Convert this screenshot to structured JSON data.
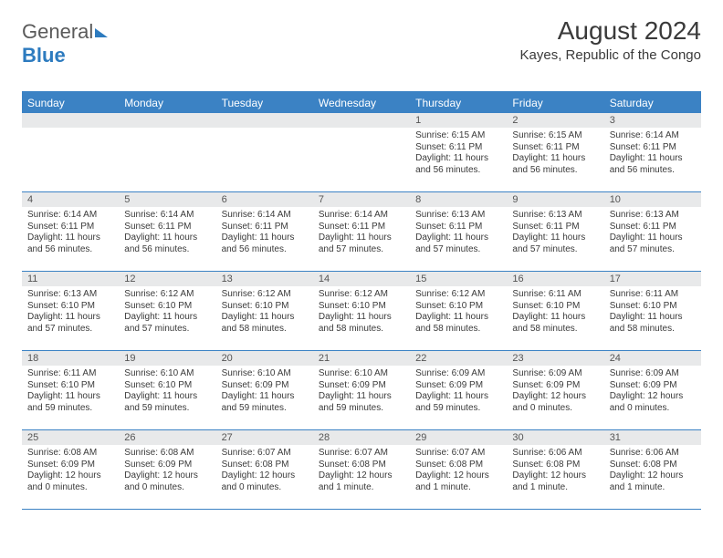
{
  "logo": {
    "part1": "General",
    "part2": "Blue"
  },
  "title": "August 2024",
  "location": "Kayes, Republic of the Congo",
  "colors": {
    "header_bg": "#3b82c4",
    "header_text": "#ffffff",
    "daynum_bg": "#e8e9ea",
    "body_text": "#3a3a3a",
    "rule": "#3b82c4"
  },
  "day_headers": [
    "Sunday",
    "Monday",
    "Tuesday",
    "Wednesday",
    "Thursday",
    "Friday",
    "Saturday"
  ],
  "weeks": [
    [
      {
        "n": "",
        "sr": "",
        "ss": "",
        "dl": ""
      },
      {
        "n": "",
        "sr": "",
        "ss": "",
        "dl": ""
      },
      {
        "n": "",
        "sr": "",
        "ss": "",
        "dl": ""
      },
      {
        "n": "",
        "sr": "",
        "ss": "",
        "dl": ""
      },
      {
        "n": "1",
        "sr": "6:15 AM",
        "ss": "6:11 PM",
        "dl": "11 hours and 56 minutes."
      },
      {
        "n": "2",
        "sr": "6:15 AM",
        "ss": "6:11 PM",
        "dl": "11 hours and 56 minutes."
      },
      {
        "n": "3",
        "sr": "6:14 AM",
        "ss": "6:11 PM",
        "dl": "11 hours and 56 minutes."
      }
    ],
    [
      {
        "n": "4",
        "sr": "6:14 AM",
        "ss": "6:11 PM",
        "dl": "11 hours and 56 minutes."
      },
      {
        "n": "5",
        "sr": "6:14 AM",
        "ss": "6:11 PM",
        "dl": "11 hours and 56 minutes."
      },
      {
        "n": "6",
        "sr": "6:14 AM",
        "ss": "6:11 PM",
        "dl": "11 hours and 56 minutes."
      },
      {
        "n": "7",
        "sr": "6:14 AM",
        "ss": "6:11 PM",
        "dl": "11 hours and 57 minutes."
      },
      {
        "n": "8",
        "sr": "6:13 AM",
        "ss": "6:11 PM",
        "dl": "11 hours and 57 minutes."
      },
      {
        "n": "9",
        "sr": "6:13 AM",
        "ss": "6:11 PM",
        "dl": "11 hours and 57 minutes."
      },
      {
        "n": "10",
        "sr": "6:13 AM",
        "ss": "6:11 PM",
        "dl": "11 hours and 57 minutes."
      }
    ],
    [
      {
        "n": "11",
        "sr": "6:13 AM",
        "ss": "6:10 PM",
        "dl": "11 hours and 57 minutes."
      },
      {
        "n": "12",
        "sr": "6:12 AM",
        "ss": "6:10 PM",
        "dl": "11 hours and 57 minutes."
      },
      {
        "n": "13",
        "sr": "6:12 AM",
        "ss": "6:10 PM",
        "dl": "11 hours and 58 minutes."
      },
      {
        "n": "14",
        "sr": "6:12 AM",
        "ss": "6:10 PM",
        "dl": "11 hours and 58 minutes."
      },
      {
        "n": "15",
        "sr": "6:12 AM",
        "ss": "6:10 PM",
        "dl": "11 hours and 58 minutes."
      },
      {
        "n": "16",
        "sr": "6:11 AM",
        "ss": "6:10 PM",
        "dl": "11 hours and 58 minutes."
      },
      {
        "n": "17",
        "sr": "6:11 AM",
        "ss": "6:10 PM",
        "dl": "11 hours and 58 minutes."
      }
    ],
    [
      {
        "n": "18",
        "sr": "6:11 AM",
        "ss": "6:10 PM",
        "dl": "11 hours and 59 minutes."
      },
      {
        "n": "19",
        "sr": "6:10 AM",
        "ss": "6:10 PM",
        "dl": "11 hours and 59 minutes."
      },
      {
        "n": "20",
        "sr": "6:10 AM",
        "ss": "6:09 PM",
        "dl": "11 hours and 59 minutes."
      },
      {
        "n": "21",
        "sr": "6:10 AM",
        "ss": "6:09 PM",
        "dl": "11 hours and 59 minutes."
      },
      {
        "n": "22",
        "sr": "6:09 AM",
        "ss": "6:09 PM",
        "dl": "11 hours and 59 minutes."
      },
      {
        "n": "23",
        "sr": "6:09 AM",
        "ss": "6:09 PM",
        "dl": "12 hours and 0 minutes."
      },
      {
        "n": "24",
        "sr": "6:09 AM",
        "ss": "6:09 PM",
        "dl": "12 hours and 0 minutes."
      }
    ],
    [
      {
        "n": "25",
        "sr": "6:08 AM",
        "ss": "6:09 PM",
        "dl": "12 hours and 0 minutes."
      },
      {
        "n": "26",
        "sr": "6:08 AM",
        "ss": "6:09 PM",
        "dl": "12 hours and 0 minutes."
      },
      {
        "n": "27",
        "sr": "6:07 AM",
        "ss": "6:08 PM",
        "dl": "12 hours and 0 minutes."
      },
      {
        "n": "28",
        "sr": "6:07 AM",
        "ss": "6:08 PM",
        "dl": "12 hours and 1 minute."
      },
      {
        "n": "29",
        "sr": "6:07 AM",
        "ss": "6:08 PM",
        "dl": "12 hours and 1 minute."
      },
      {
        "n": "30",
        "sr": "6:06 AM",
        "ss": "6:08 PM",
        "dl": "12 hours and 1 minute."
      },
      {
        "n": "31",
        "sr": "6:06 AM",
        "ss": "6:08 PM",
        "dl": "12 hours and 1 minute."
      }
    ]
  ],
  "labels": {
    "sunrise": "Sunrise:",
    "sunset": "Sunset:",
    "daylight": "Daylight:"
  }
}
